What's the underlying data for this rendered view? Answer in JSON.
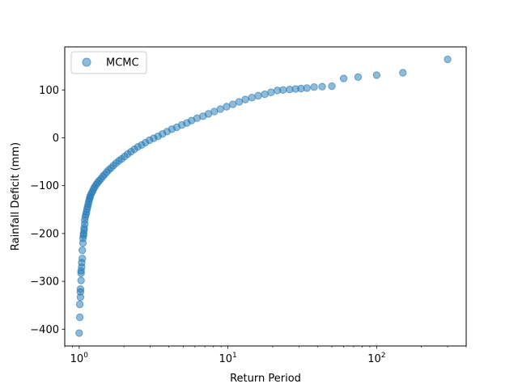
{
  "chart_data": {
    "type": "scatter",
    "title": "",
    "xlabel": "Return Period",
    "ylabel": "Rainfall Deficit (mm)",
    "xscale": "log",
    "xlim": [
      0.8,
      400
    ],
    "ylim": [
      -435,
      190
    ],
    "x_ticks": [
      {
        "value": 1,
        "label": "10^0"
      },
      {
        "value": 10,
        "label": "10^1"
      },
      {
        "value": 100,
        "label": "10^2"
      }
    ],
    "y_ticks": [
      -400,
      -300,
      -200,
      -100,
      0,
      100
    ],
    "grid": false,
    "legend": {
      "position": "top-left"
    },
    "series": [
      {
        "name": "MCMC",
        "color": "#1f77b4",
        "alpha": 0.5,
        "x": [
          1.0,
          1.01,
          1.01,
          1.02,
          1.02,
          1.02,
          1.03,
          1.03,
          1.03,
          1.04,
          1.04,
          1.05,
          1.05,
          1.06,
          1.06,
          1.07,
          1.07,
          1.08,
          1.08,
          1.09,
          1.09,
          1.1,
          1.11,
          1.12,
          1.13,
          1.14,
          1.15,
          1.16,
          1.17,
          1.18,
          1.19,
          1.21,
          1.23,
          1.25,
          1.27,
          1.3,
          1.33,
          1.36,
          1.4,
          1.44,
          1.48,
          1.53,
          1.58,
          1.64,
          1.7,
          1.77,
          1.85,
          1.93,
          2.02,
          2.12,
          2.23,
          2.35,
          2.48,
          2.63,
          2.79,
          2.97,
          3.17,
          3.39,
          3.63,
          3.9,
          4.2,
          4.53,
          4.9,
          5.3,
          5.7,
          6.2,
          6.8,
          7.4,
          8.1,
          8.9,
          9.8,
          10.8,
          11.9,
          13.1,
          14.5,
          16.0,
          17.7,
          19.5,
          21.5,
          23.5,
          26.0,
          28.5,
          31.0,
          34.0,
          38.0,
          43.0,
          50.0,
          60.0,
          75.0,
          100.0,
          150.0,
          300.0
        ],
        "y": [
          -408,
          -375,
          -348,
          -333,
          -322,
          -316,
          -298,
          -283,
          -278,
          -270,
          -261,
          -252,
          -235,
          -220,
          -210,
          -204,
          -200,
          -193,
          -188,
          -180,
          -172,
          -165,
          -160,
          -155,
          -149,
          -144,
          -139,
          -134,
          -129,
          -125,
          -121,
          -116,
          -112,
          -107,
          -103,
          -98,
          -94,
          -90,
          -86,
          -81,
          -77,
          -72,
          -67,
          -63,
          -58,
          -53,
          -48,
          -44,
          -39,
          -34,
          -29,
          -24,
          -19,
          -15,
          -10,
          -5,
          -1,
          3,
          8,
          13,
          18,
          22,
          27,
          31,
          36,
          41,
          45,
          50,
          55,
          60,
          65,
          70,
          75,
          80,
          84,
          88,
          91,
          95,
          99,
          100,
          101,
          102,
          103,
          104,
          106,
          107,
          108,
          124,
          127,
          131,
          136,
          164
        ]
      }
    ]
  }
}
